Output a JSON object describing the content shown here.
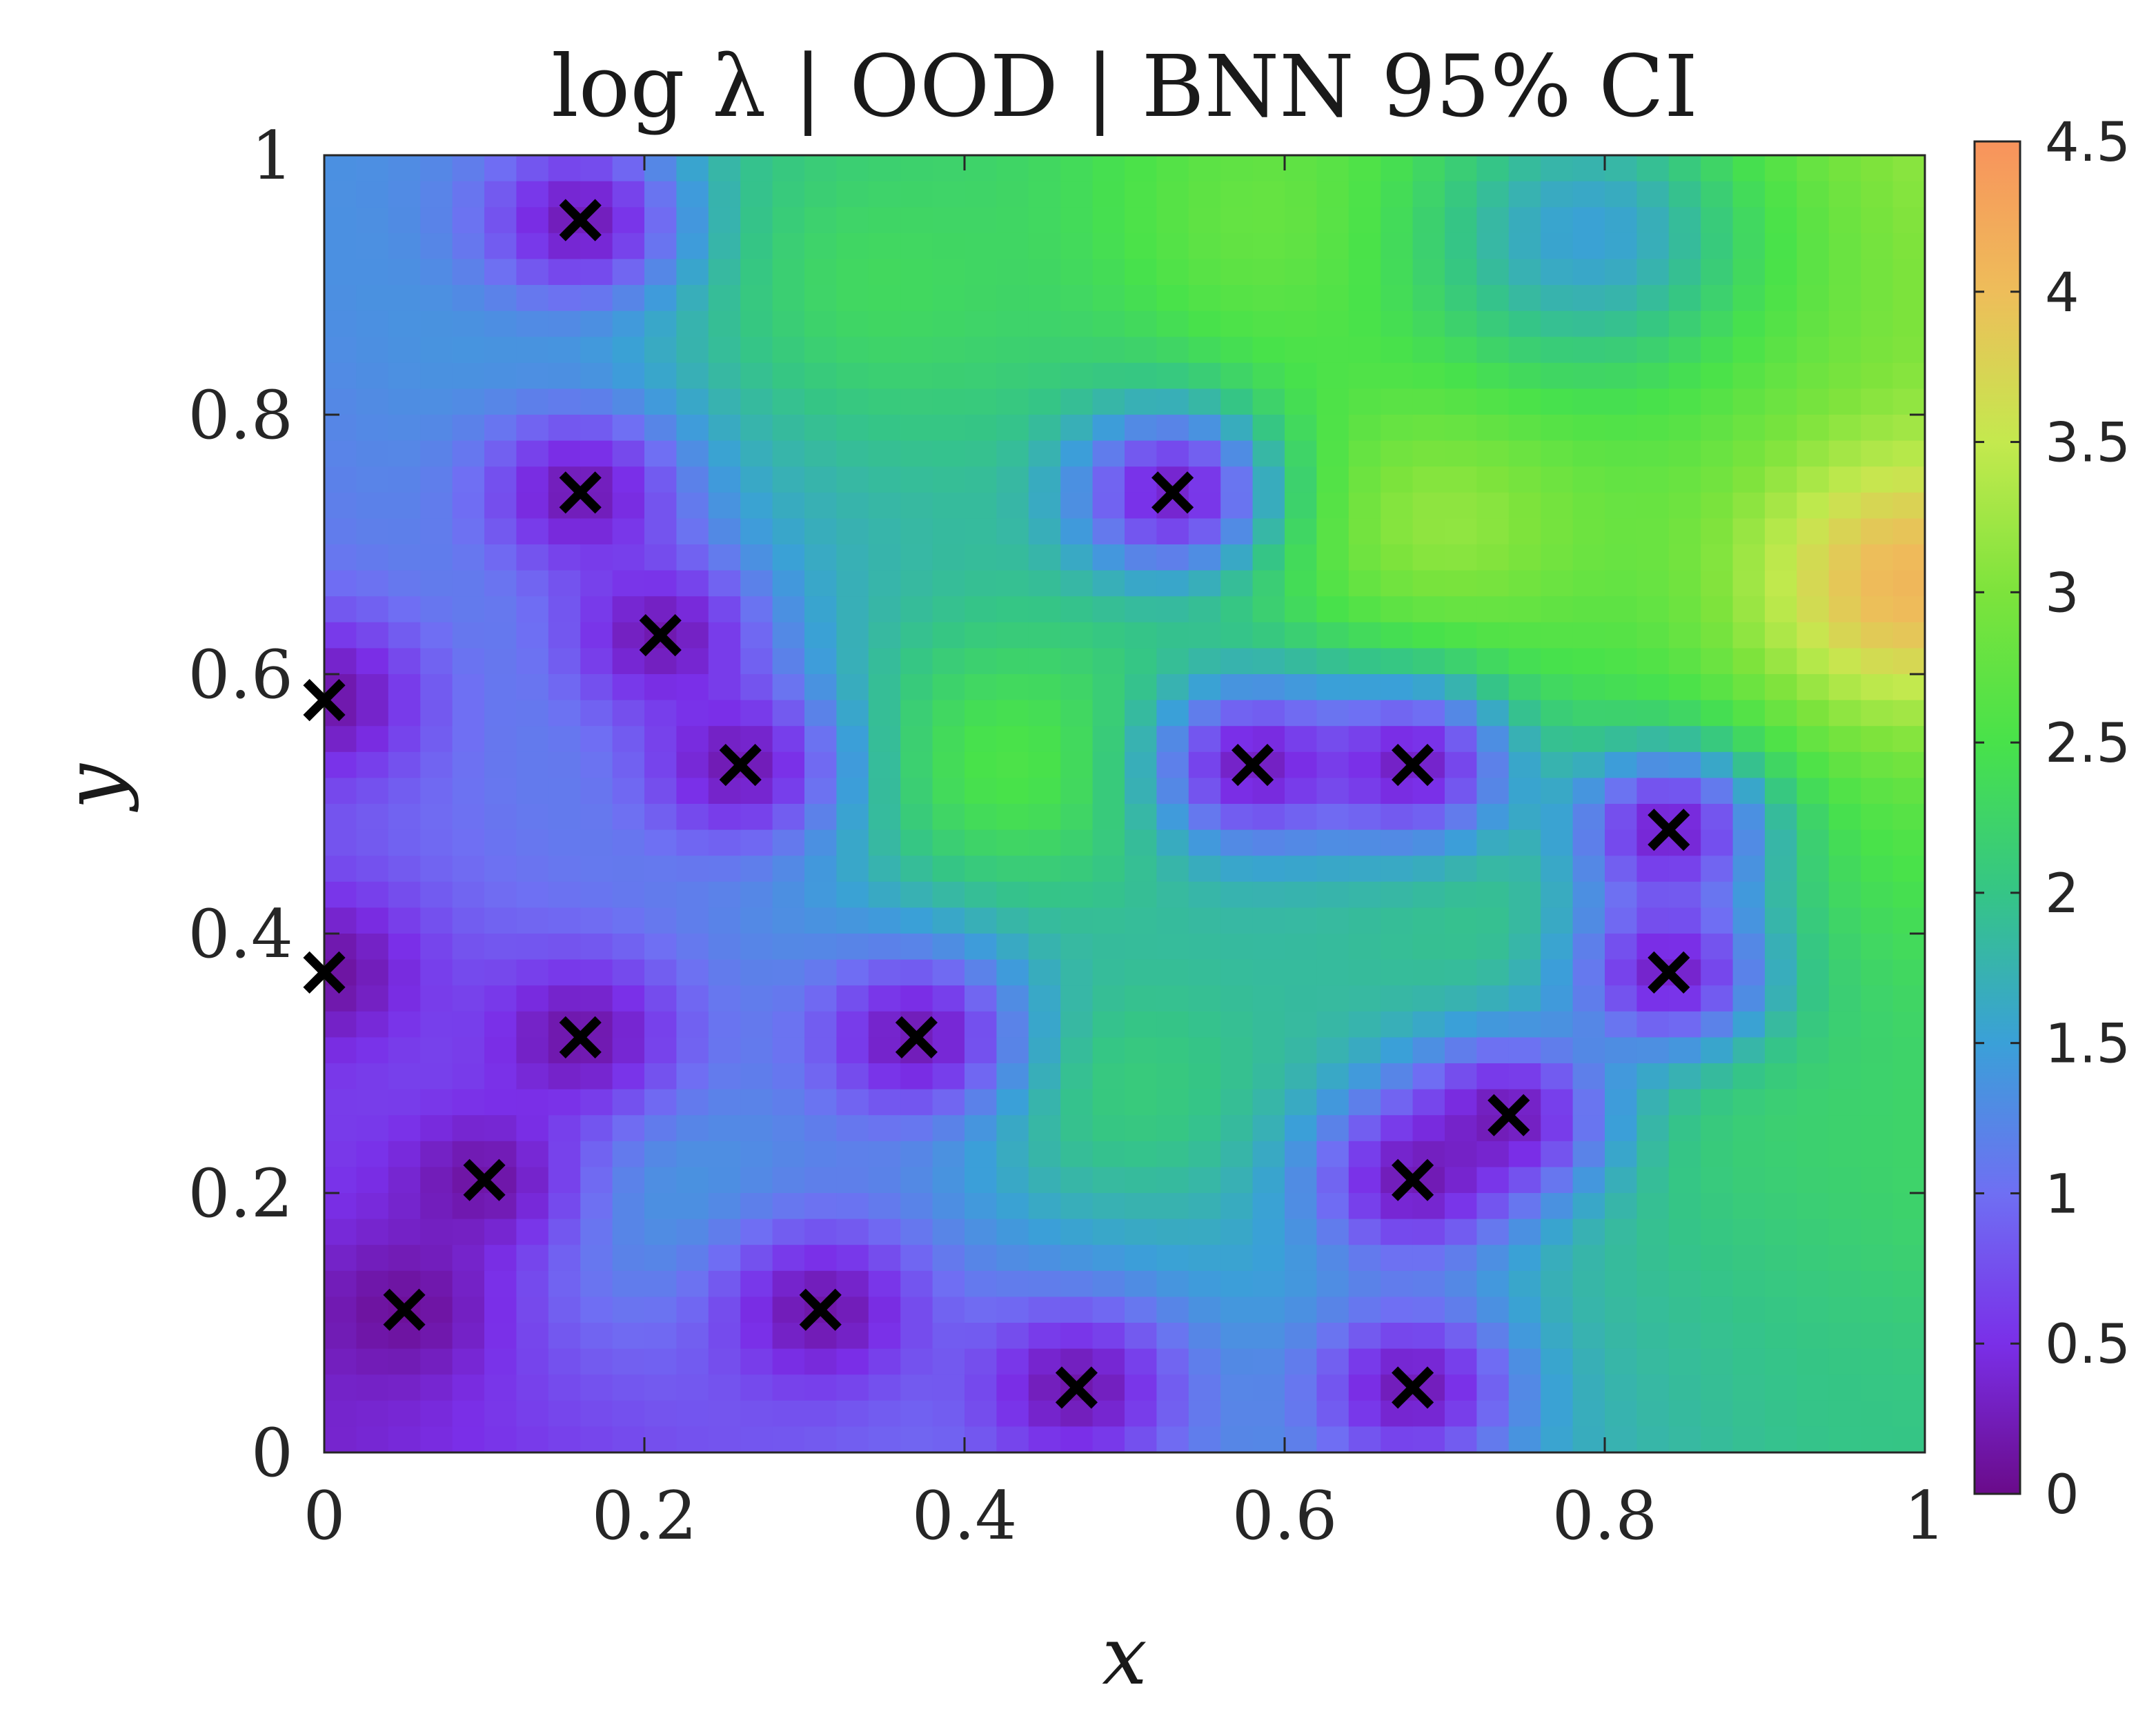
{
  "chart_data": {
    "type": "heatmap",
    "title": "log λ | OOD | BNN 95% CI",
    "xlabel": "x",
    "ylabel": "y",
    "xlim": [
      0,
      1
    ],
    "ylim": [
      0,
      1
    ],
    "x_ticks": [
      "0",
      "0.2",
      "0.4",
      "0.6",
      "0.8",
      "1"
    ],
    "y_ticks": [
      "0",
      "0.2",
      "0.4",
      "0.6",
      "0.8",
      "1"
    ],
    "colorbar": {
      "range": [
        0,
        4.5
      ],
      "ticks": [
        "0",
        "0.5",
        "1",
        "1.5",
        "2",
        "2.5",
        "3",
        "3.5",
        "4",
        "4.5"
      ]
    },
    "colormap": [
      "#6a0b8a",
      "#7a2fe8",
      "#6f6ff3",
      "#3aa0d8",
      "#35c586",
      "#48e24a",
      "#7de33c",
      "#c4e94e",
      "#eebd5a",
      "#f8935c"
    ],
    "marker": "x",
    "marker_color": "#000000",
    "points": [
      {
        "x": 0.16,
        "y": 0.95
      },
      {
        "x": 0.16,
        "y": 0.74
      },
      {
        "x": 0.21,
        "y": 0.63
      },
      {
        "x": 0.0,
        "y": 0.58
      },
      {
        "x": 0.26,
        "y": 0.53
      },
      {
        "x": 0.0,
        "y": 0.37
      },
      {
        "x": 0.16,
        "y": 0.32
      },
      {
        "x": 0.1,
        "y": 0.21
      },
      {
        "x": 0.05,
        "y": 0.11
      },
      {
        "x": 0.31,
        "y": 0.11
      },
      {
        "x": 0.37,
        "y": 0.32
      },
      {
        "x": 0.47,
        "y": 0.05
      },
      {
        "x": 0.53,
        "y": 0.74
      },
      {
        "x": 0.58,
        "y": 0.53
      },
      {
        "x": 0.68,
        "y": 0.53
      },
      {
        "x": 0.84,
        "y": 0.48
      },
      {
        "x": 0.84,
        "y": 0.37
      },
      {
        "x": 0.74,
        "y": 0.26
      },
      {
        "x": 0.68,
        "y": 0.21
      },
      {
        "x": 0.68,
        "y": 0.05
      }
    ],
    "field_features": [
      {
        "x": 0.43,
        "y": 0.53,
        "v": 2.7
      },
      {
        "x": 0.5,
        "y": 0.28,
        "v": 2.2
      },
      {
        "x": 0.7,
        "y": 0.72,
        "v": 3.3
      },
      {
        "x": 0.99,
        "y": 0.67,
        "v": 4.3
      },
      {
        "x": 0.35,
        "y": 0.9,
        "v": 2.4
      },
      {
        "x": 0.6,
        "y": 0.95,
        "v": 2.9
      },
      {
        "x": 0.95,
        "y": 0.3,
        "v": 2.2
      },
      {
        "x": 0.99,
        "y": 0.0,
        "v": 2.0
      },
      {
        "x": 0.79,
        "y": 0.94,
        "v": 1.3
      },
      {
        "x": 0.05,
        "y": 0.99,
        "v": 1.3
      },
      {
        "x": 0.21,
        "y": 0.2,
        "v": 1.5
      }
    ]
  }
}
